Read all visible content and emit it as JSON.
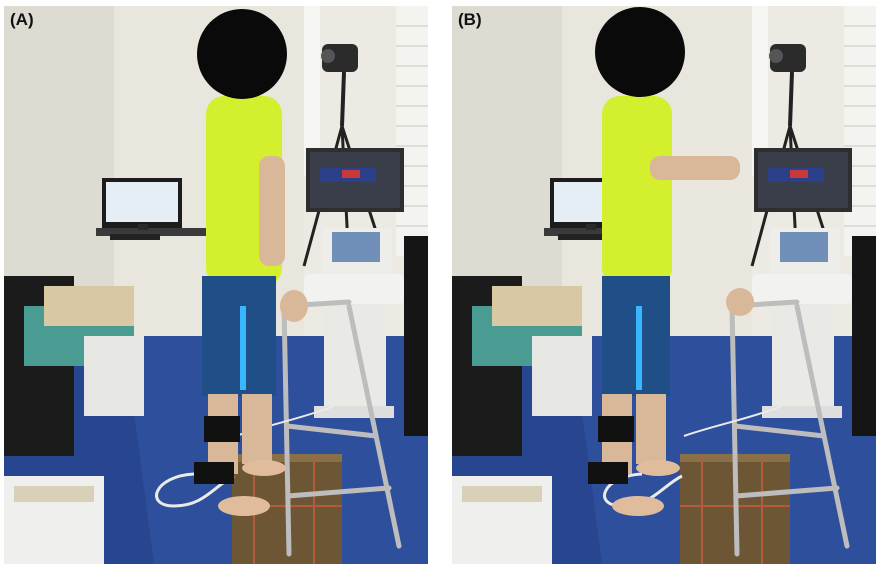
{
  "figure": {
    "panels": [
      {
        "label": "(A)",
        "pose": "standing-neutral",
        "colors": {
          "shirt": "#d4ef2e",
          "shorts": "#1f4f86",
          "floor": "#27468f",
          "face_mask": "#0a0a0a",
          "force_plate": "#6c5636"
        }
      },
      {
        "label": "(B)",
        "pose": "standing-hands-on-frame",
        "colors": {
          "shirt": "#d4ef2e",
          "shorts": "#1f4f86",
          "floor": "#27468f",
          "face_mask": "#0a0a0a",
          "force_plate": "#6c5636"
        }
      }
    ],
    "icons": [
      "ultrasound-machine-icon",
      "walking-frame-icon",
      "camera-tripod-icon",
      "computer-monitor-icon",
      "force-plate-icon"
    ]
  }
}
